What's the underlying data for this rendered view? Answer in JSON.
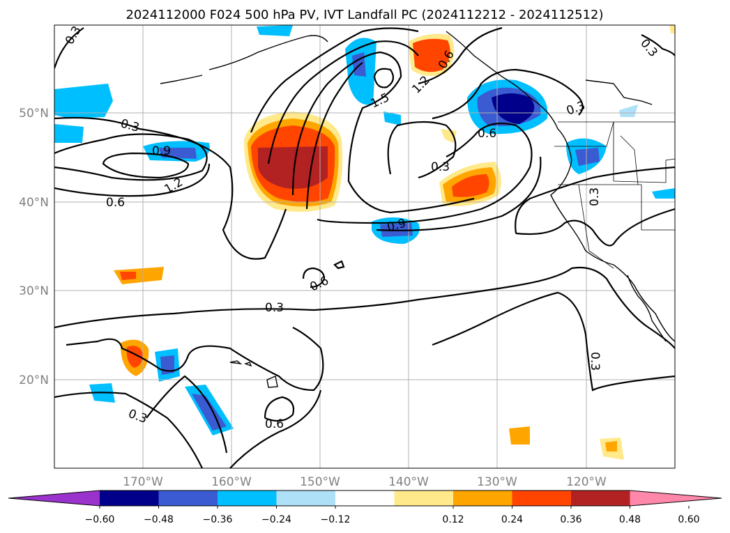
{
  "title": "2024112000 F024 500 hPa PV, IVT Landfall PC (2024112212 - 2024112512)",
  "lat_labels": [
    "50°N",
    "40°N",
    "30°N",
    "20°N"
  ],
  "lon_labels": [
    "170°W",
    "160°W",
    "150°W",
    "140°W",
    "130°W",
    "120°W"
  ],
  "colorbar": {
    "ticks": [
      "−0.60",
      "−0.48",
      "−0.36",
      "−0.24",
      "−0.12",
      "0.12",
      "0.24",
      "0.36",
      "0.48",
      "0.60"
    ],
    "colors": [
      "#9933cc",
      "#00008b",
      "#3a5bd1",
      "#00bfff",
      "#aee0f7",
      "#ffffff",
      "#ffe98a",
      "#ffa500",
      "#ff4500",
      "#b22222",
      "#ff88aa"
    ]
  },
  "contour_labels": [
    {
      "id": "c1",
      "text": "0.3"
    },
    {
      "id": "c2",
      "text": "0.3"
    },
    {
      "id": "c3",
      "text": "0.9"
    },
    {
      "id": "c4",
      "text": "1.2"
    },
    {
      "id": "c5",
      "text": "0.6"
    },
    {
      "id": "c6",
      "text": "1.5"
    },
    {
      "id": "c7",
      "text": "1.2"
    },
    {
      "id": "c8",
      "text": "0.6"
    },
    {
      "id": "c9",
      "text": "0.3"
    },
    {
      "id": "c10",
      "text": "0.6"
    },
    {
      "id": "c11",
      "text": "0.3"
    },
    {
      "id": "c12",
      "text": "0.3"
    },
    {
      "id": "c13",
      "text": "0.9"
    },
    {
      "id": "c14",
      "text": "0.6"
    },
    {
      "id": "c15",
      "text": "0.3"
    },
    {
      "id": "c16",
      "text": "0.3"
    },
    {
      "id": "c17",
      "text": "0.3"
    },
    {
      "id": "c18",
      "text": "0.6"
    },
    {
      "id": "c19",
      "text": "0.3"
    }
  ]
}
